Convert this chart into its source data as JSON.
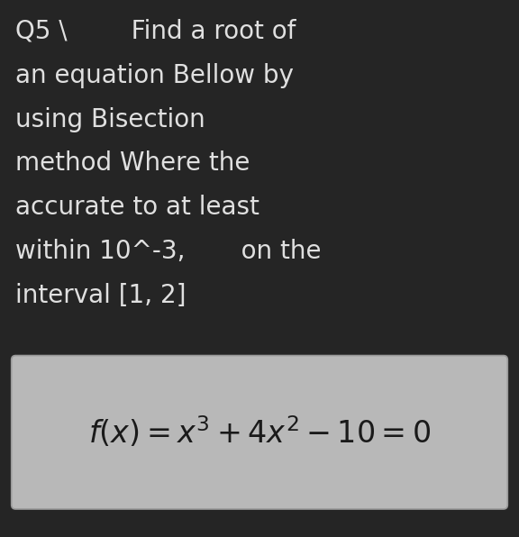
{
  "background_color": "#252525",
  "text_color": "#e0e0e0",
  "box_color": "#b8b8b8",
  "box_text_color": "#1a1a1a",
  "line1": "Q5 \\        Find a root of",
  "line2": "an equation Bellow by",
  "line3": "using Bisection",
  "line4": "method Where the",
  "line5": "accurate to at least",
  "line6": "within 10^-3,       on the",
  "line7": "interval [1, 2]",
  "formula": "$f(x) = x^3 + 4x^2 - 10 = 0$",
  "main_fontsize": 20,
  "formula_fontsize": 24,
  "figwidth": 5.76,
  "figheight": 5.96
}
